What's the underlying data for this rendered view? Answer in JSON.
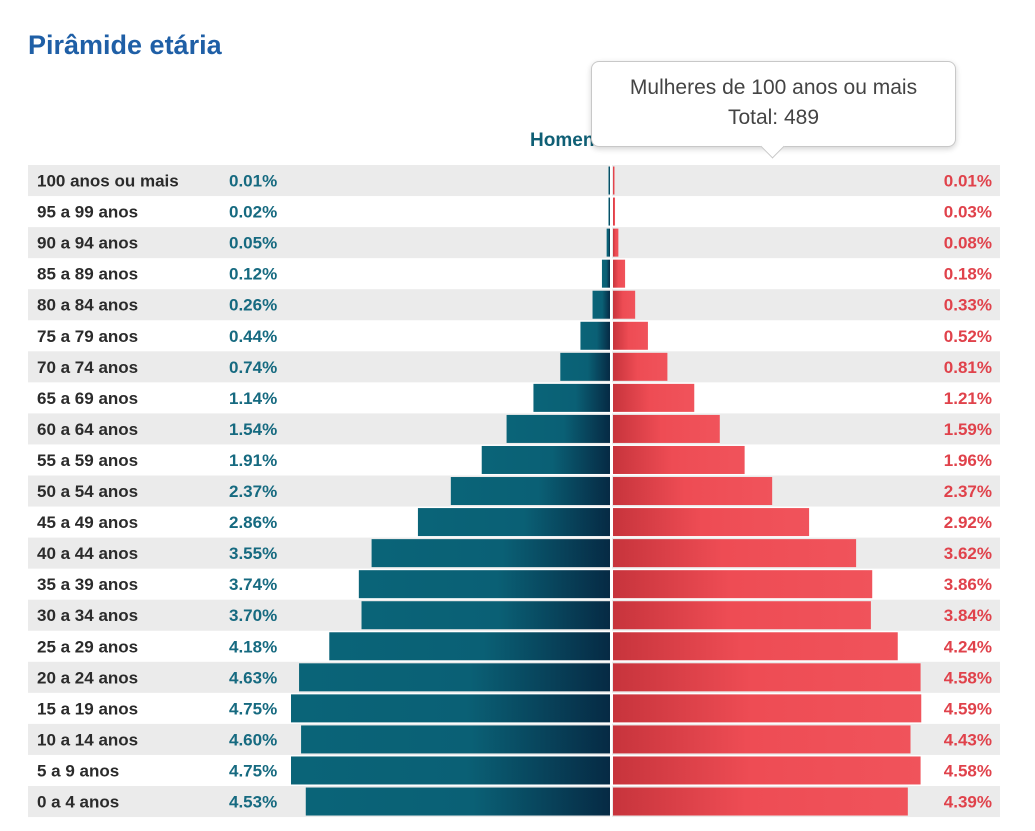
{
  "title": "Pirâmide etária",
  "tooltip": {
    "line1": "Mulheres de 100 anos ou mais",
    "label": "Total:",
    "value": "489"
  },
  "colors": {
    "men": "#0f5f75",
    "women": "#ec4e55",
    "title": "#1f5fa6"
  },
  "chart_data": {
    "type": "bar",
    "title": "Pirâmide etária",
    "series": [
      {
        "name": "Homens",
        "values": [
          0.01,
          0.02,
          0.05,
          0.12,
          0.26,
          0.44,
          0.74,
          1.14,
          1.54,
          1.91,
          2.37,
          2.86,
          3.55,
          3.74,
          3.7,
          4.18,
          4.63,
          4.75,
          4.6,
          4.75,
          4.53
        ]
      },
      {
        "name": "Mulheres",
        "values": [
          0.01,
          0.03,
          0.08,
          0.18,
          0.33,
          0.52,
          0.81,
          1.21,
          1.59,
          1.96,
          2.37,
          2.92,
          3.62,
          3.86,
          3.84,
          4.24,
          4.58,
          4.59,
          4.43,
          4.58,
          4.39
        ]
      }
    ],
    "categories": [
      "100 anos ou mais",
      "95 a 99 anos",
      "90 a 94 anos",
      "85 a 89 anos",
      "80 a 84 anos",
      "75 a 79 anos",
      "70 a 74 anos",
      "65 a 69 anos",
      "60 a 64 anos",
      "55 a 59 anos",
      "50 a 54 anos",
      "45 a 49 anos",
      "40 a 44 anos",
      "35 a 39 anos",
      "30 a 34 anos",
      "25 a 29 anos",
      "20 a 24 anos",
      "15 a 19 anos",
      "10 a 14 anos",
      "5 a 9 anos",
      "0 a 4 anos"
    ],
    "men_labels": [
      "0.01%",
      "0.02%",
      "0.05%",
      "0.12%",
      "0.26%",
      "0.44%",
      "0.74%",
      "1.14%",
      "1.54%",
      "1.91%",
      "2.37%",
      "2.86%",
      "3.55%",
      "3.74%",
      "3.70%",
      "4.18%",
      "4.63%",
      "4.75%",
      "4.60%",
      "4.75%",
      "4.53%"
    ],
    "women_labels": [
      "0.01%",
      "0.03%",
      "0.08%",
      "0.18%",
      "0.33%",
      "0.52%",
      "0.81%",
      "1.21%",
      "1.59%",
      "1.96%",
      "2.37%",
      "2.92%",
      "3.62%",
      "3.86%",
      "3.84%",
      "4.24%",
      "4.58%",
      "4.59%",
      "4.43%",
      "4.58%",
      "4.39%"
    ],
    "unit": "%",
    "xlim": [
      0,
      4.75
    ],
    "legend": "top-center",
    "grid": false
  }
}
